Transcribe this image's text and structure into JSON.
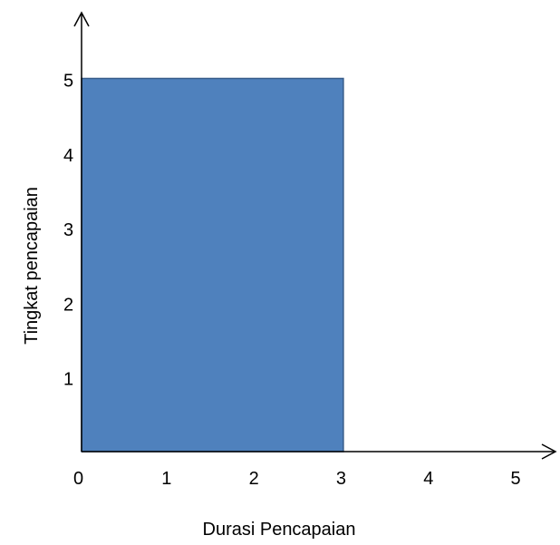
{
  "chart_data": {
    "type": "area",
    "x": [
      0,
      3
    ],
    "y": [
      5,
      5
    ],
    "xlabel": "Durasi Pencapaian",
    "ylabel": "Tingkat pencapaian",
    "xlim": [
      0,
      5
    ],
    "ylim": [
      0,
      5
    ],
    "x_ticks": [
      "0",
      "1",
      "2",
      "3",
      "4",
      "5"
    ],
    "y_ticks": [
      "1",
      "2",
      "3",
      "4",
      "5"
    ],
    "grid": false,
    "legend": "none",
    "colors": {
      "fill": "#4f81bd",
      "stroke": "#385d8a",
      "axis": "#000000"
    }
  }
}
